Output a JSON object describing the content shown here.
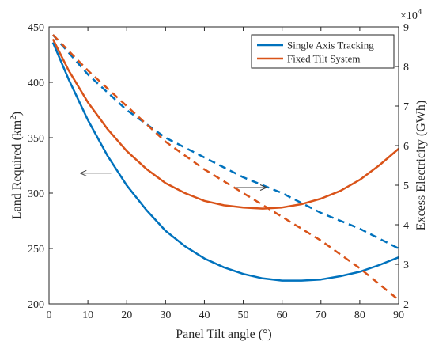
{
  "chart_data": {
    "type": "line",
    "xlabel": "Panel Tilt angle (°)",
    "ylabel_left": "Land Required (km",
    "ylabel_left_sup": "2",
    "ylabel_left_close": ")",
    "ylabel_right": "Excess Electricity (GWh)",
    "right_multiplier_base": "×10",
    "right_multiplier_exp": "4",
    "xlim": [
      0,
      90
    ],
    "ylim_left": [
      200,
      450
    ],
    "ylim_right": [
      2,
      9
    ],
    "xticks": [
      0,
      10,
      20,
      30,
      40,
      50,
      60,
      70,
      80,
      90
    ],
    "yticks_left": [
      200,
      250,
      300,
      350,
      400,
      450
    ],
    "yticks_right": [
      2,
      3,
      4,
      5,
      6,
      7,
      8,
      9
    ],
    "legend": {
      "position": "top-right",
      "entries": [
        "Single Axis Tracking",
        "Fixed Tilt System"
      ]
    },
    "colors": {
      "single_axis": "#0072BD",
      "fixed_tilt": "#D95319",
      "axis": "#262626"
    },
    "series": [
      {
        "name": "Single Axis Tracking",
        "axis": "left",
        "style": "solid",
        "color": "#0072BD",
        "x": [
          1,
          5,
          10,
          15,
          20,
          25,
          30,
          35,
          40,
          45,
          50,
          55,
          60,
          65,
          70,
          75,
          80,
          85,
          90
        ],
        "y": [
          436,
          403,
          366,
          334,
          307,
          285,
          266,
          252,
          241,
          233,
          227,
          223,
          221,
          221,
          222,
          225,
          229,
          235,
          242
        ]
      },
      {
        "name": "Fixed Tilt System",
        "axis": "left",
        "style": "solid",
        "color": "#D95319",
        "x": [
          1,
          5,
          10,
          15,
          20,
          25,
          30,
          35,
          40,
          45,
          50,
          55,
          60,
          65,
          70,
          75,
          80,
          85,
          90
        ],
        "y": [
          439,
          411,
          382,
          358,
          338,
          322,
          309,
          300,
          293,
          289,
          287,
          286,
          287,
          290,
          295,
          302,
          312,
          325,
          340
        ]
      },
      {
        "name": "Single Axis Tracking",
        "axis": "right",
        "style": "dashed",
        "color": "#0072BD",
        "x": [
          1,
          10,
          20,
          30,
          40,
          50,
          60,
          70,
          80,
          90
        ],
        "y": [
          8.8,
          7.8,
          6.9,
          6.2,
          5.7,
          5.2,
          4.8,
          4.3,
          3.9,
          3.4
        ]
      },
      {
        "name": "Fixed Tilt System",
        "axis": "right",
        "style": "dashed",
        "color": "#D95319",
        "x": [
          1,
          10,
          20,
          30,
          40,
          50,
          60,
          70,
          80,
          90
        ],
        "y": [
          8.8,
          7.9,
          7.0,
          6.1,
          5.4,
          4.8,
          4.2,
          3.6,
          2.9,
          2.1
        ]
      }
    ],
    "annotations": [
      {
        "type": "arrow",
        "direction": "left",
        "points_to": "left-axis",
        "x": [
          8,
          16
        ],
        "y_left": 318
      },
      {
        "type": "arrow",
        "direction": "right",
        "points_to": "right-axis",
        "x": [
          48,
          56
        ],
        "y_left": 305
      }
    ]
  }
}
